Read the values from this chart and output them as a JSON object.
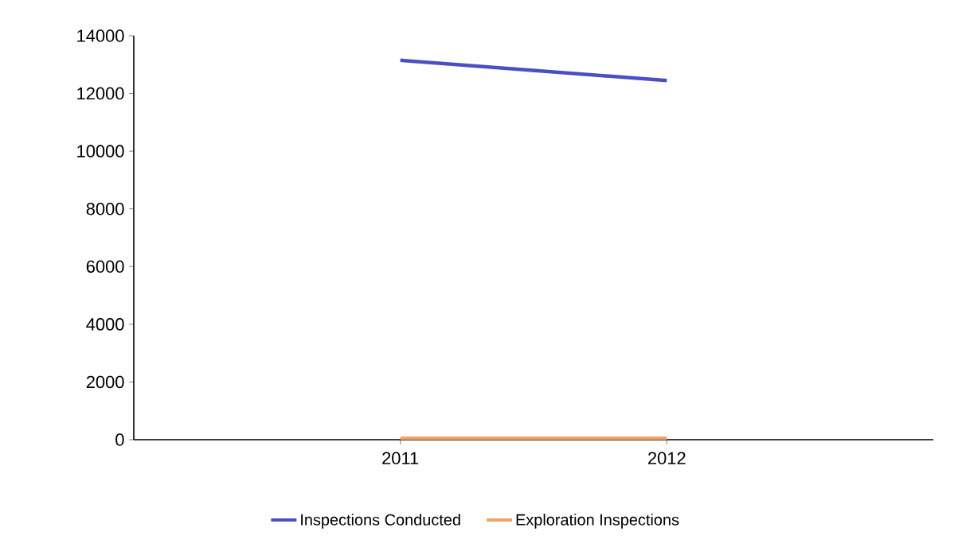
{
  "chart_data": {
    "type": "line",
    "categories": [
      "2011",
      "2012"
    ],
    "series": [
      {
        "name": "Inspections Conducted",
        "color": "#4a4fc4",
        "values": [
          13150,
          12450
        ]
      },
      {
        "name": "Exploration Inspections",
        "color": "#f2a263",
        "values": [
          50,
          50
        ]
      }
    ],
    "ylim": [
      0,
      14000
    ],
    "yticks": [
      0,
      2000,
      4000,
      6000,
      8000,
      10000,
      12000,
      14000
    ],
    "legend": "bottom"
  }
}
